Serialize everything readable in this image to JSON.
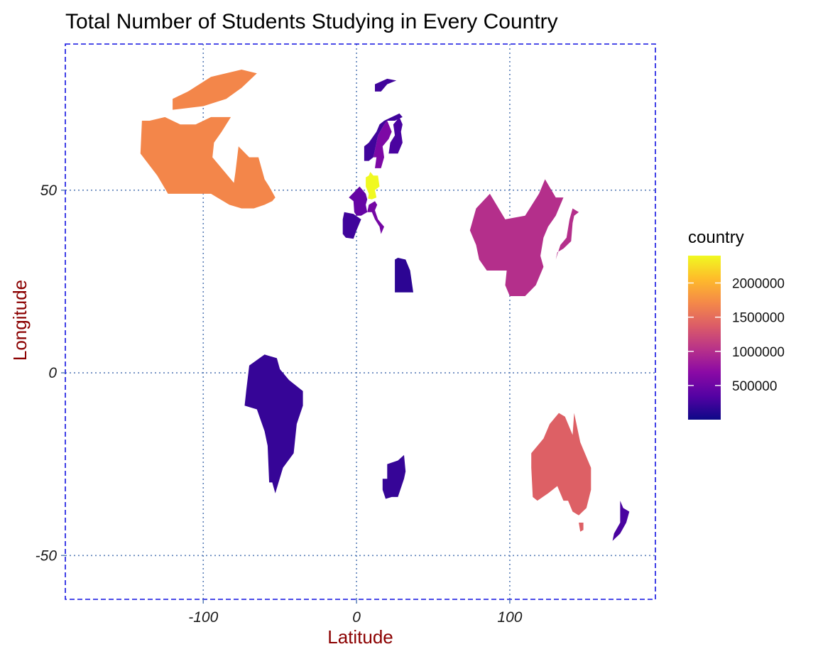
{
  "chart_data": {
    "type": "map",
    "title": "Total Number of Students Studying in Every Country",
    "xlabel": "Latitude",
    "ylabel": "Longitude",
    "xlim": [
      -190,
      195
    ],
    "ylim": [
      -62,
      90
    ],
    "x_ticks": [
      -100,
      0,
      100
    ],
    "x_tick_labels": [
      "-100",
      "0",
      "100"
    ],
    "y_ticks": [
      -50,
      0,
      50
    ],
    "y_tick_labels": [
      "-50",
      "0",
      "50"
    ],
    "grid": true,
    "legend": {
      "title": "country",
      "position": "right",
      "scale": "plasma",
      "min": 0,
      "max": 2400000,
      "breaks": [
        500000,
        1000000,
        1500000,
        2000000
      ],
      "break_labels": [
        "500000",
        "1000000",
        "1500000",
        "2000000"
      ]
    },
    "colors": {
      "grid": "#5b7fb8",
      "panel_border": "#1010e0",
      "axis_title": "#8b0000"
    },
    "regions": [
      {
        "value": 1700000,
        "outline": [
          [
            -140,
            69
          ],
          [
            -141,
            60
          ],
          [
            -130,
            54
          ],
          [
            -123,
            49
          ],
          [
            -95,
            49
          ],
          [
            -83,
            46
          ],
          [
            -75,
            45
          ],
          [
            -67,
            45
          ],
          [
            -60,
            46
          ],
          [
            -55,
            47
          ],
          [
            -53,
            48
          ],
          [
            -57,
            51
          ],
          [
            -60,
            53
          ],
          [
            -64,
            59
          ],
          [
            -70,
            59
          ],
          [
            -77,
            62
          ],
          [
            -79,
            55
          ],
          [
            -80,
            52
          ],
          [
            -90,
            57
          ],
          [
            -94,
            59
          ],
          [
            -93,
            63
          ],
          [
            -88,
            66
          ],
          [
            -82,
            70
          ],
          [
            -95,
            70
          ],
          [
            -105,
            68
          ],
          [
            -115,
            68
          ],
          [
            -125,
            70
          ],
          [
            -135,
            69
          ]
        ]
      },
      {
        "value": 1700000,
        "outline": [
          [
            -120,
            72
          ],
          [
            -100,
            73
          ],
          [
            -85,
            75
          ],
          [
            -75,
            78
          ],
          [
            -65,
            82
          ],
          [
            -75,
            83
          ],
          [
            -95,
            81
          ],
          [
            -110,
            77
          ],
          [
            -120,
            75
          ]
        ]
      },
      {
        "value": 1000000,
        "outline": [
          [
            74,
            39
          ],
          [
            78,
            45
          ],
          [
            87,
            49
          ],
          [
            97,
            42
          ],
          [
            110,
            43
          ],
          [
            119,
            49
          ],
          [
            123,
            53
          ],
          [
            130,
            48
          ],
          [
            135,
            48
          ],
          [
            130,
            43
          ],
          [
            125,
            40
          ],
          [
            122,
            37
          ],
          [
            120,
            32
          ],
          [
            122,
            29
          ],
          [
            117,
            24
          ],
          [
            110,
            21
          ],
          [
            107,
            21
          ],
          [
            100,
            21
          ],
          [
            97,
            24
          ],
          [
            98,
            28
          ],
          [
            92,
            28
          ],
          [
            85,
            28
          ],
          [
            80,
            31
          ],
          [
            78,
            35
          ]
        ]
      },
      {
        "value": 1000000,
        "outline": [
          [
            130,
            31
          ],
          [
            131,
            33
          ],
          [
            135,
            34
          ],
          [
            140,
            36
          ],
          [
            141,
            41
          ],
          [
            142,
            43
          ],
          [
            145,
            44
          ],
          [
            141,
            45
          ],
          [
            139,
            42
          ],
          [
            137,
            37
          ],
          [
            133,
            35
          ]
        ]
      },
      {
        "value": 1400000,
        "outline": [
          [
            114,
            -22
          ],
          [
            114,
            -26
          ],
          [
            115,
            -34
          ],
          [
            118,
            -35
          ],
          [
            125,
            -33
          ],
          [
            131,
            -31
          ],
          [
            135,
            -35
          ],
          [
            138,
            -35
          ],
          [
            141,
            -38
          ],
          [
            145,
            -39
          ],
          [
            150,
            -37
          ],
          [
            153,
            -32
          ],
          [
            153,
            -26
          ],
          [
            146,
            -19
          ],
          [
            142,
            -11
          ],
          [
            141,
            -17
          ],
          [
            136,
            -12
          ],
          [
            132,
            -11
          ],
          [
            126,
            -14
          ],
          [
            122,
            -18
          ]
        ]
      },
      {
        "value": 1400000,
        "outline": [
          [
            145,
            -41
          ],
          [
            148,
            -41
          ],
          [
            148,
            -43
          ],
          [
            146,
            -43.5
          ]
        ]
      },
      {
        "value": 300000,
        "outline": [
          [
            172,
            -35
          ],
          [
            174,
            -37
          ],
          [
            178,
            -38
          ],
          [
            176,
            -41
          ],
          [
            172,
            -44
          ],
          [
            167,
            -46
          ],
          [
            168,
            -44
          ],
          [
            172,
            -41
          ]
        ]
      },
      {
        "value": 200000,
        "outline": [
          [
            -72,
            -5
          ],
          [
            -70,
            2
          ],
          [
            -60,
            5
          ],
          [
            -52,
            4
          ],
          [
            -50,
            1
          ],
          [
            -44,
            -2
          ],
          [
            -35,
            -5
          ],
          [
            -35,
            -9
          ],
          [
            -39,
            -14
          ],
          [
            -41,
            -22
          ],
          [
            -48,
            -26
          ],
          [
            -53,
            -33
          ],
          [
            -55,
            -30
          ],
          [
            -57,
            -30
          ],
          [
            -58,
            -20
          ],
          [
            -60,
            -16
          ],
          [
            -65,
            -10
          ],
          [
            -73,
            -9
          ]
        ]
      },
      {
        "value": 200000,
        "outline": [
          [
            17,
            -29
          ],
          [
            17,
            -32
          ],
          [
            19,
            -34.5
          ],
          [
            23,
            -34
          ],
          [
            27,
            -34
          ],
          [
            31,
            -29
          ],
          [
            32,
            -27
          ],
          [
            31,
            -22.5
          ],
          [
            27,
            -24
          ],
          [
            20,
            -25
          ],
          [
            20,
            -29
          ]
        ]
      },
      {
        "value": 150000,
        "outline": [
          [
            25,
            22
          ],
          [
            25,
            31
          ],
          [
            27,
            31.5
          ],
          [
            32,
            31
          ],
          [
            35,
            28
          ],
          [
            37,
            22
          ]
        ]
      },
      {
        "value": 2400000,
        "outline": [
          [
            6,
            51
          ],
          [
            6,
            53.5
          ],
          [
            8,
            54
          ],
          [
            9,
            55
          ],
          [
            11,
            54
          ],
          [
            14,
            54
          ],
          [
            15,
            51
          ],
          [
            12,
            50
          ],
          [
            13,
            48
          ],
          [
            10,
            47.5
          ],
          [
            7.5,
            47.7
          ],
          [
            8,
            49
          ]
        ]
      },
      {
        "value": 450000,
        "outline": [
          [
            -5,
            48
          ],
          [
            2,
            51
          ],
          [
            6,
            49
          ],
          [
            7,
            47.5
          ],
          [
            6,
            46
          ],
          [
            7,
            44
          ],
          [
            3,
            43
          ],
          [
            0,
            43
          ],
          [
            -1.5,
            44
          ],
          [
            -2,
            47
          ]
        ]
      },
      {
        "value": 250000,
        "outline": [
          [
            -9,
            42
          ],
          [
            -9,
            38
          ],
          [
            -7,
            37
          ],
          [
            -2,
            36.7
          ],
          [
            0,
            39
          ],
          [
            3,
            42
          ],
          [
            -2,
            43.5
          ],
          [
            -8,
            44
          ]
        ]
      },
      {
        "value": 550000,
        "outline": [
          [
            8,
            46
          ],
          [
            12,
            47
          ],
          [
            13.5,
            46
          ],
          [
            12,
            44.5
          ],
          [
            14,
            42
          ],
          [
            16,
            41
          ],
          [
            18,
            40
          ],
          [
            16,
            38
          ],
          [
            15,
            40
          ],
          [
            12,
            42
          ],
          [
            10,
            44
          ],
          [
            7,
            44
          ]
        ]
      },
      {
        "value": 600000,
        "outline": [
          [
            12,
            56
          ],
          [
            13,
            59
          ],
          [
            11,
            59
          ],
          [
            12,
            61
          ],
          [
            14,
            65
          ],
          [
            18,
            68
          ],
          [
            20,
            69
          ],
          [
            23,
            66
          ],
          [
            21,
            64
          ],
          [
            17,
            62
          ],
          [
            18,
            59
          ],
          [
            16,
            56
          ]
        ]
      },
      {
        "value": 250000,
        "outline": [
          [
            5,
            58
          ],
          [
            5,
            62
          ],
          [
            8,
            63
          ],
          [
            13,
            66
          ],
          [
            15,
            68
          ],
          [
            18,
            69
          ],
          [
            23,
            70
          ],
          [
            28,
            71
          ],
          [
            30,
            70
          ],
          [
            25,
            69
          ],
          [
            20,
            69
          ],
          [
            18,
            68
          ],
          [
            14,
            65
          ],
          [
            12,
            61
          ],
          [
            11,
            59
          ],
          [
            8,
            58
          ]
        ]
      },
      {
        "value": 300000,
        "outline": [
          [
            21,
            60
          ],
          [
            22,
            63
          ],
          [
            25,
            65
          ],
          [
            24,
            68
          ],
          [
            28,
            70
          ],
          [
            30,
            68
          ],
          [
            29,
            66
          ],
          [
            30,
            63
          ],
          [
            27,
            60
          ]
        ]
      },
      {
        "value": 250000,
        "outline": [
          [
            12,
            77
          ],
          [
            16,
            77
          ],
          [
            20,
            79
          ],
          [
            26,
            80
          ],
          [
            20,
            80.5
          ],
          [
            12,
            79
          ]
        ]
      }
    ]
  }
}
